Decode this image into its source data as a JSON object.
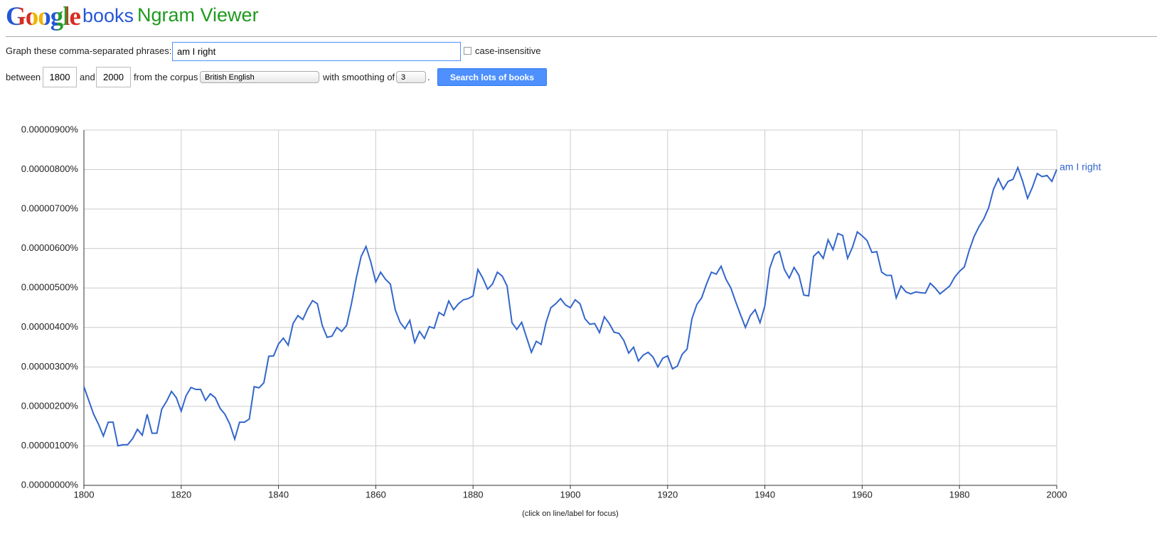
{
  "header": {
    "logo": "Google",
    "product": "books",
    "app": "Ngram Viewer"
  },
  "form": {
    "phrases_label": "Graph these comma-separated phrases:",
    "phrases": "am I right",
    "case_label": "case-insensitive",
    "between_label": "between",
    "start_year": "1800",
    "and_label": "and",
    "end_year": "2000",
    "corpus_label": "from the corpus",
    "corpus": "British English",
    "smoothing_label": "with smoothing of",
    "smoothing": "3",
    "period": ".",
    "button": "Search lots of books"
  },
  "chart_data": {
    "type": "line",
    "note": "(click on line/label for focus)",
    "grid": true,
    "xlim": [
      1800,
      2000
    ],
    "xticks": [
      1800,
      1820,
      1840,
      1860,
      1880,
      1900,
      1920,
      1940,
      1960,
      1980,
      2000
    ],
    "ylim": [
      0,
      9e-06
    ],
    "yticks": [
      {
        "value": 0,
        "label": "0.00000000%"
      },
      {
        "value": 1e-06,
        "label": "0.00000100%"
      },
      {
        "value": 2e-06,
        "label": "0.00000200%"
      },
      {
        "value": 3e-06,
        "label": "0.00000300%"
      },
      {
        "value": 4e-06,
        "label": "0.00000400%"
      },
      {
        "value": 5e-06,
        "label": "0.00000500%"
      },
      {
        "value": 6e-06,
        "label": "0.00000600%"
      },
      {
        "value": 7e-06,
        "label": "0.00000700%"
      },
      {
        "value": 8e-06,
        "label": "0.00000800%"
      },
      {
        "value": 9e-06,
        "label": "0.00000900%"
      }
    ],
    "x": [
      1800,
      1801,
      1802,
      1803,
      1804,
      1805,
      1806,
      1807,
      1808,
      1809,
      1810,
      1811,
      1812,
      1813,
      1814,
      1815,
      1816,
      1817,
      1818,
      1819,
      1820,
      1821,
      1822,
      1823,
      1824,
      1825,
      1826,
      1827,
      1828,
      1829,
      1830,
      1831,
      1832,
      1833,
      1834,
      1835,
      1836,
      1837,
      1838,
      1839,
      1840,
      1841,
      1842,
      1843,
      1844,
      1845,
      1846,
      1847,
      1848,
      1849,
      1850,
      1851,
      1852,
      1853,
      1854,
      1855,
      1856,
      1857,
      1858,
      1859,
      1860,
      1861,
      1862,
      1863,
      1864,
      1865,
      1866,
      1867,
      1868,
      1869,
      1870,
      1871,
      1872,
      1873,
      1874,
      1875,
      1876,
      1877,
      1878,
      1879,
      1880,
      1881,
      1882,
      1883,
      1884,
      1885,
      1886,
      1887,
      1888,
      1889,
      1890,
      1891,
      1892,
      1893,
      1894,
      1895,
      1896,
      1897,
      1898,
      1899,
      1900,
      1901,
      1902,
      1903,
      1904,
      1905,
      1906,
      1907,
      1908,
      1909,
      1910,
      1911,
      1912,
      1913,
      1914,
      1915,
      1916,
      1917,
      1918,
      1919,
      1920,
      1921,
      1922,
      1923,
      1924,
      1925,
      1926,
      1927,
      1928,
      1929,
      1930,
      1931,
      1932,
      1933,
      1934,
      1935,
      1936,
      1937,
      1938,
      1939,
      1940,
      1941,
      1942,
      1943,
      1944,
      1945,
      1946,
      1947,
      1948,
      1949,
      1950,
      1951,
      1952,
      1953,
      1954,
      1955,
      1956,
      1957,
      1958,
      1959,
      1960,
      1961,
      1962,
      1963,
      1964,
      1965,
      1966,
      1967,
      1968,
      1969,
      1970,
      1971,
      1972,
      1973,
      1974,
      1975,
      1976,
      1977,
      1978,
      1979,
      1980,
      1981,
      1982,
      1983,
      1984,
      1985,
      1986,
      1987,
      1988,
      1989,
      1990,
      1991,
      1992,
      1993,
      1994,
      1995,
      1996,
      1997,
      1998,
      1999,
      2000
    ],
    "series": [
      {
        "name": "am I right",
        "color": "#3366cc",
        "values": [
          2.5e-06,
          2.15e-06,
          1.8e-06,
          1.55e-06,
          1.25e-06,
          1.6e-06,
          1.6e-06,
          1e-06,
          1.03e-06,
          1.03e-06,
          1.18e-06,
          1.42e-06,
          1.27e-06,
          1.8e-06,
          1.32e-06,
          1.32e-06,
          1.93e-06,
          2.13e-06,
          2.38e-06,
          2.22e-06,
          1.88e-06,
          2.27e-06,
          2.48e-06,
          2.43e-06,
          2.43e-06,
          2.15e-06,
          2.32e-06,
          2.22e-06,
          1.95e-06,
          1.8e-06,
          1.55e-06,
          1.17e-06,
          1.6e-06,
          1.6e-06,
          1.68e-06,
          2.5e-06,
          2.47e-06,
          2.6e-06,
          3.27e-06,
          3.28e-06,
          3.58e-06,
          3.73e-06,
          3.55e-06,
          4.1e-06,
          4.3e-06,
          4.2e-06,
          4.47e-06,
          4.68e-06,
          4.6e-06,
          4.05e-06,
          3.75e-06,
          3.78e-06,
          4e-06,
          3.9e-06,
          4.05e-06,
          4.6e-06,
          5.25e-06,
          5.8e-06,
          6.05e-06,
          5.65e-06,
          5.15e-06,
          5.4e-06,
          5.22e-06,
          5.1e-06,
          4.45e-06,
          4.13e-06,
          3.97e-06,
          4.18e-06,
          3.62e-06,
          3.9e-06,
          3.72e-06,
          4.02e-06,
          3.98e-06,
          4.38e-06,
          4.3e-06,
          4.67e-06,
          4.45e-06,
          4.6e-06,
          4.7e-06,
          4.73e-06,
          4.8e-06,
          5.47e-06,
          5.25e-06,
          4.97e-06,
          5.1e-06,
          5.4e-06,
          5.3e-06,
          5.05e-06,
          4.12e-06,
          3.95e-06,
          4.13e-06,
          3.75e-06,
          3.37e-06,
          3.65e-06,
          3.57e-06,
          4.12e-06,
          4.5e-06,
          4.6e-06,
          4.73e-06,
          4.57e-06,
          4.5e-06,
          4.7e-06,
          4.6e-06,
          4.22e-06,
          4.08e-06,
          4.1e-06,
          3.87e-06,
          4.27e-06,
          4.1e-06,
          3.88e-06,
          3.85e-06,
          3.67e-06,
          3.35e-06,
          3.5e-06,
          3.15e-06,
          3.3e-06,
          3.37e-06,
          3.25e-06,
          3e-06,
          3.22e-06,
          3.28e-06,
          2.95e-06,
          3.02e-06,
          3.32e-06,
          3.45e-06,
          4.22e-06,
          4.58e-06,
          4.75e-06,
          5.1e-06,
          5.4e-06,
          5.35e-06,
          5.55e-06,
          5.22e-06,
          5e-06,
          4.65e-06,
          4.32e-06,
          4e-06,
          4.3e-06,
          4.45e-06,
          4.12e-06,
          4.55e-06,
          5.5e-06,
          5.85e-06,
          5.93e-06,
          5.47e-06,
          5.25e-06,
          5.52e-06,
          5.32e-06,
          4.82e-06,
          4.8e-06,
          5.8e-06,
          5.92e-06,
          5.75e-06,
          6.22e-06,
          5.97e-06,
          6.38e-06,
          6.33e-06,
          5.75e-06,
          6.03e-06,
          6.42e-06,
          6.32e-06,
          6.2e-06,
          5.9e-06,
          5.92e-06,
          5.4e-06,
          5.32e-06,
          5.32e-06,
          4.75e-06,
          5.05e-06,
          4.9e-06,
          4.85e-06,
          4.9e-06,
          4.88e-06,
          4.87e-06,
          5.12e-06,
          5e-06,
          4.85e-06,
          4.95e-06,
          5.05e-06,
          5.27e-06,
          5.42e-06,
          5.53e-06,
          5.95e-06,
          6.3e-06,
          6.55e-06,
          6.75e-06,
          7.03e-06,
          7.5e-06,
          7.77e-06,
          7.5e-06,
          7.7e-06,
          7.75e-06,
          8.05e-06,
          7.7e-06,
          7.27e-06,
          7.55e-06,
          7.9e-06,
          7.82e-06,
          7.85e-06,
          7.7e-06,
          8e-06
        ]
      }
    ]
  }
}
